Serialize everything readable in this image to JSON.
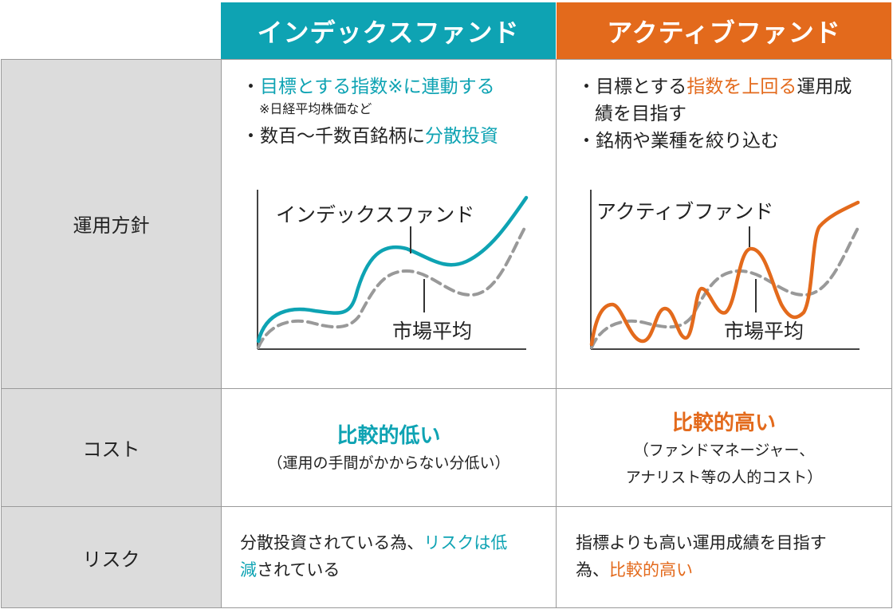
{
  "headers": {
    "index_fund": "インデックスファンド",
    "active_fund": "アクティブファンド"
  },
  "row_labels": {
    "policy": "運用方針",
    "cost": "コスト",
    "risk": "リスク"
  },
  "policy": {
    "index": {
      "bullet1_prefix": "・",
      "bullet1_highlight": "目標とする指数※に連動する",
      "note": "※日経平均株価など",
      "bullet2_text": "・数百〜千数百銘柄に",
      "bullet2_highlight": "分散投資"
    },
    "active": {
      "bullet1_text": "・目標とする",
      "bullet1_highlight": "指数を上回る",
      "bullet1_rest": "運用成",
      "bullet1_line2": "績を目指す",
      "bullet2_text": "・銘柄や業種を絞り込む"
    }
  },
  "charts": {
    "index": {
      "fund_label": "インデックスファンド",
      "market_label": "市場平均",
      "fund_color": "#0ea3b3",
      "market_color": "#999999"
    },
    "active": {
      "fund_label": "アクティブファンド",
      "market_label": "市場平均",
      "fund_color": "#e36a1c",
      "market_color": "#999999"
    }
  },
  "cost": {
    "index_main": "比較的低い",
    "index_sub": "（運用の手間がかからない分低い）",
    "active_main": "比較的高い",
    "active_sub_line1": "（ファンドマネージャー、",
    "active_sub_line2": "アナリスト等の人的コスト）"
  },
  "risk": {
    "index_text": "分散投資されている為、",
    "index_highlight1": "リスクは低",
    "index_highlight2": "減",
    "index_rest": "されている",
    "active_text1": "指標よりも高い運用成績を目指す",
    "active_text2": "為、",
    "active_highlight": "比較的高い"
  },
  "colors": {
    "teal": "#0ea3b3",
    "orange": "#e36a1c",
    "row_header_bg": "#dcdcdc",
    "grid": "#9a9a9a"
  }
}
